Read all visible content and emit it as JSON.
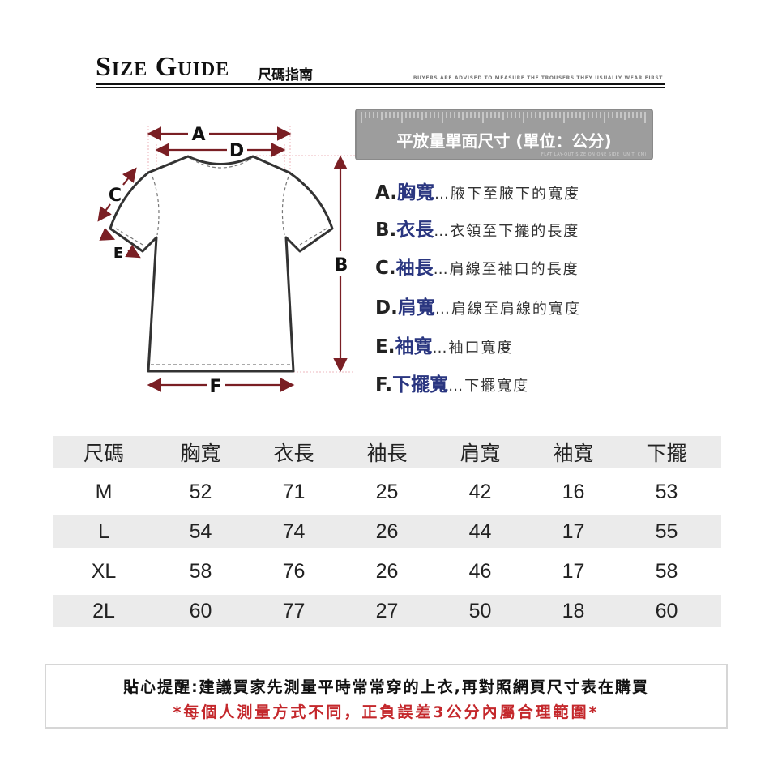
{
  "header": {
    "title": "Size Guide",
    "title_cn": "尺碼指南",
    "subtitle": "BUYERS ARE ADVISED TO MEASURE THE TROUSERS THEY USUALLY WEAR FIRST"
  },
  "ruler": {
    "title": "平放量單面尺寸 (單位：公分)",
    "subtitle": "FLAT LAY-OUT SIZE ON ONE SIDE (UNIT: CM)"
  },
  "diagram": {
    "labels": {
      "A": "A",
      "B": "B",
      "C": "C",
      "D": "D",
      "E": "E",
      "F": "F"
    },
    "arrow_color": "#7a1f24"
  },
  "measurements": [
    {
      "letter": "A.",
      "name": "胸寬",
      "desc": "…腋下至腋下的寬度"
    },
    {
      "letter": "B.",
      "name": "衣長",
      "desc": "…衣領至下擺的長度"
    },
    {
      "letter": "C.",
      "name": "袖長",
      "desc": "…肩線至袖口的長度"
    },
    {
      "letter": "D.",
      "name": "肩寬",
      "desc": "…肩線至肩線的寬度"
    },
    {
      "letter": "E.",
      "name": "袖寬",
      "desc": "…袖口寬度"
    },
    {
      "letter": "F.",
      "name": "下擺寬",
      "desc": "…下擺寬度"
    }
  ],
  "table": {
    "headers": [
      "尺碼",
      "胸寬",
      "衣長",
      "袖長",
      "肩寬",
      "袖寬",
      "下擺"
    ],
    "rows": [
      [
        "M",
        "52",
        "71",
        "25",
        "42",
        "16",
        "53"
      ],
      [
        "L",
        "54",
        "74",
        "26",
        "44",
        "17",
        "55"
      ],
      [
        "XL",
        "58",
        "76",
        "26",
        "46",
        "17",
        "58"
      ],
      [
        "2L",
        "60",
        "77",
        "27",
        "50",
        "18",
        "60"
      ]
    ]
  },
  "note": {
    "line1": "貼心提醒:建議買家先測量平時常常穿的上衣,再對照網頁尺寸表在購買",
    "line2": "*每個人測量方式不同，正負誤差3公分內屬合理範圍*"
  },
  "colors": {
    "label_blue": "#2a3680",
    "note_red": "#c4282c",
    "ruler_gray": "#9d9d9d"
  }
}
